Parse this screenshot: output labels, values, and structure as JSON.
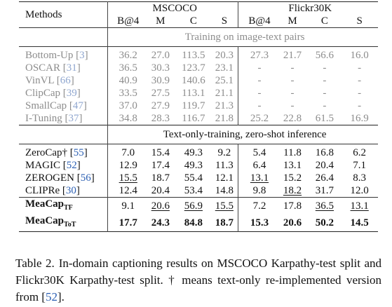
{
  "header": {
    "methods": "Methods",
    "groups": [
      "MSCOCO",
      "Flickr30K"
    ],
    "metrics": [
      "B@4",
      "M",
      "C",
      "S",
      "B@4",
      "M",
      "C",
      "S"
    ]
  },
  "sections": [
    {
      "title": "Training on image-text pairs",
      "rows": [
        {
          "name": "Bottom-Up",
          "cite": "3",
          "values": [
            "36.2",
            "27.0",
            "113.5",
            "20.3",
            "27.3",
            "21.7",
            "56.6",
            "16.0"
          ]
        },
        {
          "name": "OSCAR",
          "cite": "31",
          "values": [
            "36.5",
            "30.3",
            "123.7",
            "23.1",
            "-",
            "-",
            "-",
            "-"
          ]
        },
        {
          "name": "VinVL",
          "cite": "66",
          "values": [
            "40.9",
            "30.9",
            "140.6",
            "25.1",
            "-",
            "-",
            "-",
            "-"
          ]
        },
        {
          "name": "ClipCap",
          "cite": "39",
          "values": [
            "33.5",
            "27.5",
            "113.1",
            "21.1",
            "-",
            "-",
            "-",
            "-"
          ]
        },
        {
          "name": "SmallCap",
          "cite": "47",
          "values": [
            "37.0",
            "27.9",
            "119.7",
            "21.3",
            "-",
            "-",
            "-",
            "-"
          ]
        },
        {
          "name": "I-Tuning",
          "cite": "37",
          "values": [
            "34.8",
            "28.3",
            "116.7",
            "21.8",
            "25.2",
            "22.8",
            "61.5",
            "16.9"
          ]
        }
      ]
    },
    {
      "title": "Text-only-training, zero-shot inference",
      "rows": [
        {
          "name": "ZeroCap†",
          "cite": "55",
          "values": [
            "7.0",
            "15.4",
            "49.3",
            "9.2",
            "5.4",
            "11.8",
            "16.8",
            "6.2"
          ]
        },
        {
          "name": "MAGIC",
          "cite": "52",
          "values": [
            "12.9",
            "17.4",
            "49.3",
            "11.3",
            "6.4",
            "13.1",
            "20.4",
            "7.1"
          ]
        },
        {
          "name": "ZEROGEN",
          "cite": "56",
          "values": [
            "15.5",
            "18.7",
            "55.4",
            "12.1",
            "13.1",
            "15.2",
            "26.4",
            "8.3"
          ]
        },
        {
          "name": "CLIPRe",
          "cite": "30",
          "values": [
            "12.4",
            "20.4",
            "53.4",
            "14.8",
            "9.8",
            "18.2",
            "31.7",
            "12.0"
          ]
        },
        {
          "name": "MeaCap",
          "sub": "TF",
          "values": [
            "9.1",
            "20.6",
            "56.9",
            "15.5",
            "7.2",
            "17.8",
            "36.5",
            "13.1"
          ]
        },
        {
          "name": "MeaCap",
          "sub": "ToT",
          "values": [
            "17.7",
            "24.3",
            "84.8",
            "18.7",
            "15.3",
            "20.6",
            "50.2",
            "14.5"
          ]
        }
      ]
    }
  ],
  "caption": {
    "label": "Table 2.",
    "text": "In-domain captioning results on MSCOCO Karpathy-test split and Flickr30K Karpathy-test split. † means text-only re-implemented version from [",
    "cite": "52",
    "end": "]."
  }
}
